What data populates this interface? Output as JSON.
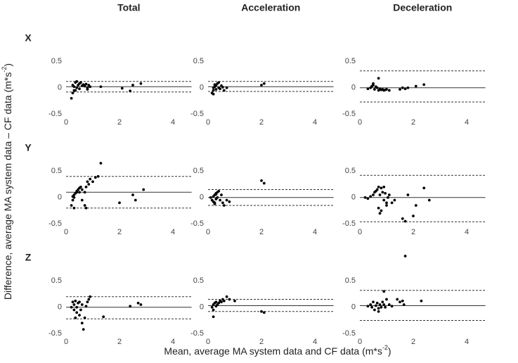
{
  "figure": {
    "row_labels": [
      "X",
      "Y",
      "Z"
    ],
    "xlabel": {
      "text": "Mean, average MA system data and CF data (m*s",
      "sup": "-2",
      "end": ")"
    },
    "ylabel": {
      "text": "Difference, average MA system data – CF data (m*s",
      "sup": "-2",
      "end": ")"
    }
  },
  "chart_data": [
    {
      "type": "scatter",
      "title": "Total",
      "xlim": [
        0,
        4.7
      ],
      "ylim": [
        -0.55,
        1.05
      ],
      "xticks": [
        0,
        2,
        4
      ],
      "yticks": [
        -0.5,
        0,
        0.5
      ],
      "color": "#000000",
      "mean": 0.02,
      "limits_of_agreement": [
        0.12,
        -0.08
      ],
      "x": [
        0.2,
        0.25,
        0.3,
        0.3,
        0.35,
        0.4,
        0.4,
        0.45,
        0.5,
        0.5,
        0.55,
        0.6,
        0.65,
        0.7,
        0.75,
        0.8,
        0.8,
        0.85,
        0.9,
        0.25,
        0.35,
        1.3,
        2.1,
        2.4,
        2.5,
        2.8
      ],
      "y": [
        -0.2,
        0.05,
        0.02,
        -0.05,
        0.1,
        0.0,
        0.12,
        0.05,
        0.08,
        -0.02,
        0.1,
        0.04,
        0.06,
        0.03,
        0.07,
        0.0,
        -0.03,
        0.05,
        0.02,
        -0.1,
        -0.05,
        0.02,
        -0.01,
        -0.06,
        0.05,
        0.08
      ]
    },
    {
      "type": "scatter",
      "title": "Acceleration",
      "xlim": [
        0,
        4.7
      ],
      "ylim": [
        -0.55,
        1.05
      ],
      "xticks": [
        0,
        2,
        4
      ],
      "yticks": [
        -0.5,
        0,
        0.5
      ],
      "color": "#000000",
      "mean": 0.02,
      "limits_of_agreement": [
        0.12,
        -0.07
      ],
      "x": [
        0.15,
        0.2,
        0.2,
        0.25,
        0.3,
        0.3,
        0.35,
        0.4,
        0.4,
        0.45,
        0.5,
        0.55,
        0.6,
        0.7,
        0.2,
        0.25,
        2.0,
        2.1
      ],
      "y": [
        -0.1,
        0.0,
        -0.05,
        0.02,
        0.05,
        -0.03,
        0.08,
        0.0,
        0.1,
        -0.02,
        0.04,
        0.01,
        -0.05,
        0.0,
        -0.12,
        0.06,
        0.05,
        0.08
      ]
    },
    {
      "type": "scatter",
      "title": "Deceleration",
      "xlim": [
        0,
        4.7
      ],
      "ylim": [
        -0.55,
        1.05
      ],
      "xticks": [
        0,
        2,
        4
      ],
      "yticks": [
        -0.5,
        0,
        0.5
      ],
      "color": "#000000",
      "mean": 0.0,
      "limits_of_agreement": [
        0.32,
        -0.27
      ],
      "x": [
        0.3,
        0.4,
        0.45,
        0.5,
        0.55,
        0.6,
        0.65,
        0.7,
        0.75,
        0.8,
        0.85,
        0.9,
        0.95,
        1.0,
        1.1,
        1.5,
        1.6,
        1.7,
        1.8,
        2.1,
        2.4,
        0.7,
        0.5
      ],
      "y": [
        -0.02,
        0.0,
        0.03,
        0.05,
        -0.03,
        0.02,
        0.0,
        -0.05,
        -0.02,
        -0.04,
        -0.03,
        -0.05,
        -0.04,
        -0.03,
        -0.05,
        -0.03,
        0.0,
        -0.02,
        0.0,
        0.03,
        0.06,
        0.18,
        0.08
      ]
    },
    {
      "type": "scatter",
      "xlim": [
        0,
        4.7
      ],
      "ylim": [
        -0.55,
        1.05
      ],
      "xticks": [
        0,
        2,
        4
      ],
      "yticks": [
        -0.5,
        0,
        0.5
      ],
      "color": "#000000",
      "mean": 0.1,
      "limits_of_agreement": [
        0.4,
        -0.2
      ],
      "x": [
        0.2,
        0.25,
        0.3,
        0.3,
        0.35,
        0.4,
        0.4,
        0.45,
        0.5,
        0.5,
        0.55,
        0.6,
        0.6,
        0.7,
        0.75,
        0.8,
        0.85,
        0.9,
        1.0,
        1.1,
        1.2,
        1.3,
        0.7,
        0.75,
        2.0,
        2.5,
        2.6,
        2.9,
        0.3,
        0.25
      ],
      "y": [
        -0.15,
        -0.05,
        0.0,
        0.05,
        0.08,
        0.1,
        0.12,
        0.15,
        0.1,
        0.18,
        0.2,
        0.15,
        -0.05,
        0.1,
        0.2,
        0.3,
        0.25,
        0.35,
        0.3,
        0.38,
        0.4,
        0.65,
        -0.15,
        -0.2,
        -0.1,
        0.05,
        -0.05,
        0.15,
        -0.2,
        0.02
      ]
    },
    {
      "type": "scatter",
      "xlim": [
        0,
        4.7
      ],
      "ylim": [
        -0.55,
        1.05
      ],
      "xticks": [
        0,
        2,
        4
      ],
      "yticks": [
        -0.5,
        0,
        0.5
      ],
      "color": "#000000",
      "mean": 0.0,
      "limits_of_agreement": [
        0.15,
        -0.15
      ],
      "x": [
        0.1,
        0.15,
        0.2,
        0.2,
        0.25,
        0.25,
        0.3,
        0.3,
        0.35,
        0.35,
        0.4,
        0.45,
        0.5,
        0.55,
        0.6,
        0.7,
        0.8,
        2.0,
        2.1,
        0.25,
        0.3
      ],
      "y": [
        0.0,
        -0.05,
        0.02,
        -0.08,
        0.05,
        -0.1,
        0.08,
        -0.03,
        0.1,
        0.0,
        0.12,
        -0.05,
        0.05,
        -0.1,
        -0.15,
        -0.05,
        -0.08,
        0.32,
        0.27,
        -0.12,
        0.06
      ]
    },
    {
      "type": "scatter",
      "xlim": [
        0,
        4.7
      ],
      "ylim": [
        -0.55,
        1.05
      ],
      "xticks": [
        0,
        2,
        4
      ],
      "yticks": [
        -0.5,
        0,
        0.5
      ],
      "color": "#000000",
      "mean": 0.0,
      "limits_of_agreement": [
        0.42,
        -0.46
      ],
      "x": [
        0.2,
        0.3,
        0.4,
        0.5,
        0.55,
        0.6,
        0.65,
        0.7,
        0.75,
        0.8,
        0.85,
        0.9,
        0.95,
        1.0,
        1.05,
        1.1,
        1.2,
        1.3,
        0.7,
        0.75,
        0.8,
        1.6,
        1.7,
        1.8,
        2.0,
        2.1,
        2.4,
        2.6,
        0.9,
        1.0
      ],
      "y": [
        0.0,
        -0.02,
        0.02,
        0.05,
        0.1,
        0.12,
        0.15,
        0.2,
        0.05,
        0.18,
        0.1,
        -0.05,
        0.08,
        -0.1,
        0.0,
        0.05,
        -0.1,
        -0.05,
        -0.2,
        -0.3,
        -0.25,
        -0.4,
        -0.45,
        0.05,
        -0.35,
        -0.15,
        0.18,
        -0.05,
        0.2,
        -0.15
      ]
    },
    {
      "type": "scatter",
      "xlim": [
        0,
        4.7
      ],
      "ylim": [
        -0.55,
        1.05
      ],
      "xticks": [
        0,
        2,
        4
      ],
      "yticks": [
        -0.5,
        0,
        0.5
      ],
      "color": "#000000",
      "mean": 0.0,
      "limits_of_agreement": [
        0.2,
        -0.22
      ],
      "x": [
        0.2,
        0.25,
        0.3,
        0.3,
        0.35,
        0.4,
        0.4,
        0.45,
        0.5,
        0.55,
        0.6,
        0.65,
        0.7,
        0.75,
        0.8,
        0.85,
        0.9,
        0.6,
        0.5,
        1.4,
        2.4,
        2.7,
        2.8,
        0.35
      ],
      "y": [
        0.0,
        0.1,
        -0.05,
        0.05,
        0.12,
        -0.1,
        0.0,
        0.08,
        -0.15,
        -0.05,
        0.05,
        -0.42,
        -0.2,
        0.02,
        0.1,
        0.15,
        0.2,
        -0.3,
        0.1,
        -0.18,
        0.02,
        0.08,
        0.05,
        -0.2
      ]
    },
    {
      "type": "scatter",
      "xlim": [
        0,
        4.7
      ],
      "ylim": [
        -0.55,
        1.05
      ],
      "xticks": [
        0,
        2,
        4
      ],
      "yticks": [
        -0.5,
        0,
        0.5
      ],
      "color": "#000000",
      "mean": 0.03,
      "limits_of_agreement": [
        0.15,
        -0.08
      ],
      "x": [
        0.15,
        0.2,
        0.2,
        0.25,
        0.3,
        0.3,
        0.35,
        0.4,
        0.45,
        0.5,
        0.55,
        0.6,
        0.7,
        0.8,
        1.0,
        2.0,
        2.1,
        0.2
      ],
      "y": [
        0.0,
        0.05,
        -0.05,
        0.08,
        0.02,
        0.1,
        0.05,
        0.08,
        0.12,
        0.1,
        0.15,
        0.12,
        0.2,
        0.15,
        0.12,
        -0.08,
        -0.1,
        -0.18
      ]
    },
    {
      "type": "scatter",
      "xlim": [
        0,
        4.7
      ],
      "ylim": [
        -0.55,
        1.05
      ],
      "xticks": [
        0,
        2,
        4
      ],
      "yticks": [
        -0.5,
        0,
        0.5
      ],
      "color": "#000000",
      "mean": 0.03,
      "limits_of_agreement": [
        0.32,
        -0.25
      ],
      "x": [
        0.3,
        0.4,
        0.45,
        0.5,
        0.55,
        0.6,
        0.65,
        0.7,
        0.75,
        0.8,
        0.85,
        0.9,
        0.95,
        1.0,
        1.1,
        1.2,
        1.4,
        1.5,
        1.6,
        1.65,
        1.7,
        2.3,
        0.7,
        0.9
      ],
      "y": [
        0.02,
        0.05,
        0.0,
        0.1,
        -0.05,
        0.03,
        0.08,
        -0.02,
        0.05,
        0.0,
        0.1,
        0.05,
        0.0,
        0.15,
        0.05,
        0.02,
        0.15,
        0.1,
        0.12,
        0.05,
        0.97,
        0.12,
        -0.08,
        0.3
      ]
    }
  ]
}
